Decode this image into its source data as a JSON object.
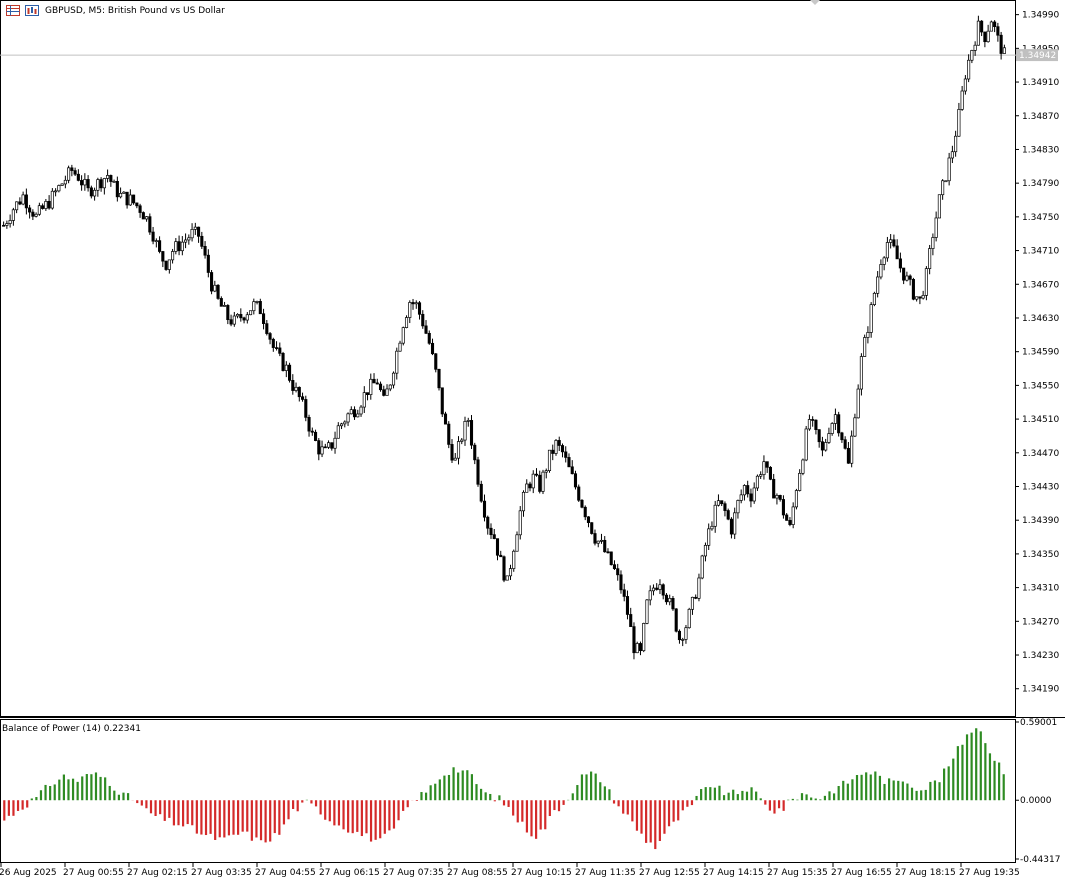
{
  "window": {
    "title": "GBPUSD, M5:  British Pound vs US Dollar"
  },
  "price_chart": {
    "type": "candlestick",
    "symbol": "GBPUSD",
    "timeframe": "M5",
    "y_ticks": [
      "1.34990",
      "1.34950",
      "1.34910",
      "1.34870",
      "1.34830",
      "1.34790",
      "1.34750",
      "1.34710",
      "1.34670",
      "1.34630",
      "1.34590",
      "1.34550",
      "1.34510",
      "1.34470",
      "1.34430",
      "1.34390",
      "1.34350",
      "1.34310",
      "1.34270",
      "1.34230",
      "1.34190"
    ],
    "y_range": [
      1.3416,
      1.35005
    ],
    "current_price": "1.34942",
    "colors": {
      "candle_up": "#000000",
      "candle_down": "#000000",
      "bid_line": "#c0c0c0",
      "price_label_bg": "#c0c0c0"
    },
    "close_path": [
      [
        0,
        1.3474
      ],
      [
        3,
        1.3476
      ],
      [
        6,
        1.34775
      ],
      [
        10,
        1.3475
      ],
      [
        14,
        1.34768
      ],
      [
        18,
        1.3479
      ],
      [
        21,
        1.34805
      ],
      [
        23,
        1.34798
      ],
      [
        26,
        1.3478
      ],
      [
        29,
        1.3479
      ],
      [
        32,
        1.348
      ],
      [
        34,
        1.34785
      ],
      [
        36,
        1.34775
      ],
      [
        39,
        1.3477
      ],
      [
        42,
        1.3476
      ],
      [
        44,
        1.34748
      ],
      [
        46,
        1.3473
      ],
      [
        48,
        1.34705
      ],
      [
        50,
        1.34695
      ],
      [
        52,
        1.3471
      ],
      [
        55,
        1.3472
      ],
      [
        58,
        1.3473
      ],
      [
        60,
        1.34728
      ],
      [
        62,
        1.347
      ],
      [
        64,
        1.3467
      ],
      [
        66,
        1.3465
      ],
      [
        69,
        1.3463
      ],
      [
        71,
        1.34625
      ],
      [
        74,
        1.34635
      ],
      [
        77,
        1.34645
      ],
      [
        79,
        1.3464
      ],
      [
        81,
        1.3462
      ],
      [
        83,
        1.34595
      ],
      [
        85,
        1.3458
      ],
      [
        87,
        1.3457
      ],
      [
        89,
        1.3455
      ],
      [
        91,
        1.34535
      ],
      [
        93,
        1.34515
      ],
      [
        95,
        1.3449
      ],
      [
        97,
        1.34475
      ],
      [
        99,
        1.3447
      ],
      [
        101,
        1.3448
      ],
      [
        103,
        1.345
      ],
      [
        106,
        1.34515
      ],
      [
        109,
        1.34525
      ],
      [
        112,
        1.34545
      ],
      [
        115,
        1.34555
      ],
      [
        117,
        1.3453
      ],
      [
        119,
        1.34555
      ],
      [
        121,
        1.3459
      ],
      [
        123,
        1.34625
      ],
      [
        125,
        1.3465
      ],
      [
        127,
        1.34645
      ],
      [
        129,
        1.34625
      ],
      [
        131,
        1.346
      ],
      [
        133,
        1.34565
      ],
      [
        135,
        1.3452
      ],
      [
        137,
        1.3448
      ],
      [
        139,
        1.3446
      ],
      [
        141,
        1.3449
      ],
      [
        143,
        1.3451
      ],
      [
        145,
        1.3446
      ],
      [
        147,
        1.3442
      ],
      [
        149,
        1.34385
      ],
      [
        151,
        1.3437
      ],
      [
        153,
        1.3434
      ],
      [
        155,
        1.34315
      ],
      [
        157,
        1.3436
      ],
      [
        159,
        1.344
      ],
      [
        161,
        1.3443
      ],
      [
        163,
        1.3444
      ],
      [
        165,
        1.3443
      ],
      [
        168,
        1.34465
      ],
      [
        170,
        1.3448
      ],
      [
        172,
        1.3447
      ],
      [
        174,
        1.3445
      ],
      [
        176,
        1.3443
      ],
      [
        178,
        1.3441
      ],
      [
        180,
        1.3439
      ],
      [
        182,
        1.3437
      ],
      [
        184,
        1.3436
      ],
      [
        186,
        1.34345
      ],
      [
        188,
        1.3433
      ],
      [
        190,
        1.3431
      ],
      [
        192,
        1.3428
      ],
      [
        194,
        1.3424
      ],
      [
        196,
        1.3423
      ],
      [
        198,
        1.3429
      ],
      [
        200,
        1.3431
      ],
      [
        202,
        1.3432
      ],
      [
        204,
        1.343
      ],
      [
        206,
        1.3428
      ],
      [
        208,
        1.3425
      ],
      [
        210,
        1.34265
      ],
      [
        212,
        1.3429
      ],
      [
        214,
        1.3432
      ],
      [
        216,
        1.3436
      ],
      [
        218,
        1.3439
      ],
      [
        220,
        1.3441
      ],
      [
        222,
        1.344
      ],
      [
        224,
        1.3438
      ],
      [
        226,
        1.3441
      ],
      [
        228,
        1.3443
      ],
      [
        230,
        1.3442
      ],
      [
        232,
        1.3444
      ],
      [
        234,
        1.3446
      ],
      [
        236,
        1.3443
      ],
      [
        238,
        1.3442
      ],
      [
        240,
        1.344
      ],
      [
        242,
        1.3438
      ],
      [
        244,
        1.3443
      ],
      [
        246,
        1.3447
      ],
      [
        248,
        1.3451
      ],
      [
        250,
        1.3449
      ],
      [
        252,
        1.3447
      ],
      [
        254,
        1.345
      ],
      [
        256,
        1.34515
      ],
      [
        258,
        1.3449
      ],
      [
        260,
        1.34455
      ],
      [
        262,
        1.3452
      ],
      [
        264,
        1.3458
      ],
      [
        266,
        1.3462
      ],
      [
        268,
        1.3466
      ],
      [
        270,
        1.347
      ],
      [
        272,
        1.3472
      ],
      [
        274,
        1.3471
      ],
      [
        276,
        1.3469
      ],
      [
        278,
        1.34675
      ],
      [
        280,
        1.3466
      ],
      [
        282,
        1.3465
      ],
      [
        284,
        1.3468
      ],
      [
        286,
        1.3473
      ],
      [
        288,
        1.3477
      ],
      [
        290,
        1.348
      ],
      [
        292,
        1.3483
      ],
      [
        294,
        1.3487
      ],
      [
        296,
        1.3492
      ],
      [
        298,
        1.3495
      ],
      [
        300,
        1.34975
      ],
      [
        302,
        1.34965
      ],
      [
        304,
        1.34985
      ],
      [
        306,
        1.3496
      ],
      [
        308,
        1.34942
      ]
    ]
  },
  "indicator": {
    "title": "Balance of Power (14) 0.22341",
    "y_ticks": [
      "0.59001",
      "0.0000",
      "-0.44317"
    ],
    "y_range": [
      -0.44317,
      0.59001
    ],
    "colors": {
      "positive": "#2e8b22",
      "negative": "#d42a2a"
    },
    "bop_path": [
      [
        0,
        -0.15
      ],
      [
        4,
        -0.05
      ],
      [
        7,
        0.02
      ],
      [
        10,
        0.12
      ],
      [
        13,
        0.18
      ],
      [
        16,
        0.15
      ],
      [
        19,
        0.2
      ],
      [
        22,
        0.17
      ],
      [
        24,
        0.1
      ],
      [
        26,
        0.04
      ],
      [
        28,
        0.01
      ],
      [
        29,
        -0.02
      ],
      [
        31,
        -0.08
      ],
      [
        33,
        -0.12
      ],
      [
        36,
        -0.16
      ],
      [
        40,
        -0.2
      ],
      [
        44,
        -0.27
      ],
      [
        48,
        -0.3
      ],
      [
        52,
        -0.24
      ],
      [
        56,
        -0.32
      ],
      [
        60,
        -0.25
      ],
      [
        63,
        -0.08
      ],
      [
        66,
        -0.02
      ],
      [
        68,
        -0.06
      ],
      [
        71,
        -0.15
      ],
      [
        74,
        -0.2
      ],
      [
        78,
        -0.26
      ],
      [
        82,
        -0.31
      ],
      [
        85,
        -0.22
      ],
      [
        88,
        -0.05
      ],
      [
        90,
        0.02
      ],
      [
        92,
        0.06
      ],
      [
        94,
        0.14
      ],
      [
        96,
        0.2
      ],
      [
        98,
        0.24
      ],
      [
        100,
        0.22
      ],
      [
        102,
        0.18
      ],
      [
        104,
        0.08
      ],
      [
        106,
        0.03
      ],
      [
        108,
        0.01
      ],
      [
        110,
        -0.06
      ],
      [
        112,
        -0.15
      ],
      [
        114,
        -0.22
      ],
      [
        116,
        -0.27
      ],
      [
        118,
        -0.2
      ],
      [
        120,
        -0.08
      ],
      [
        122,
        -0.03
      ],
      [
        124,
        0.08
      ],
      [
        126,
        0.18
      ],
      [
        128,
        0.2
      ],
      [
        130,
        0.16
      ],
      [
        132,
        0.06
      ],
      [
        134,
        -0.05
      ],
      [
        136,
        -0.12
      ],
      [
        138,
        -0.22
      ],
      [
        140,
        -0.3
      ],
      [
        142,
        -0.35
      ],
      [
        144,
        -0.25
      ],
      [
        146,
        -0.18
      ],
      [
        148,
        -0.1
      ],
      [
        150,
        -0.04
      ],
      [
        152,
        0.06
      ],
      [
        154,
        0.12
      ],
      [
        156,
        0.08
      ],
      [
        158,
        0.04
      ],
      [
        160,
        0.06
      ],
      [
        162,
        0.09
      ],
      [
        164,
        0.05
      ],
      [
        166,
        -0.04
      ],
      [
        168,
        -0.08
      ],
      [
        170,
        -0.06
      ],
      [
        172,
        0.01
      ],
      [
        174,
        0.05
      ],
      [
        176,
        0.03
      ],
      [
        178,
        0.02
      ],
      [
        180,
        0.06
      ],
      [
        182,
        0.1
      ],
      [
        184,
        0.14
      ],
      [
        186,
        0.18
      ],
      [
        188,
        0.22
      ],
      [
        190,
        0.2
      ],
      [
        192,
        0.15
      ],
      [
        194,
        0.13
      ],
      [
        196,
        0.16
      ],
      [
        198,
        0.12
      ],
      [
        200,
        0.08
      ],
      [
        202,
        0.12
      ],
      [
        204,
        0.16
      ],
      [
        206,
        0.26
      ],
      [
        208,
        0.38
      ],
      [
        210,
        0.5
      ],
      [
        212,
        0.56
      ],
      [
        214,
        0.46
      ],
      [
        216,
        0.3
      ],
      [
        218,
        0.22
      ]
    ]
  },
  "time_axis": {
    "labels": [
      "26 Aug 2025",
      "27 Aug 00:55",
      "27 Aug 02:15",
      "27 Aug 03:35",
      "27 Aug 04:55",
      "27 Aug 06:15",
      "27 Aug 07:35",
      "27 Aug 08:55",
      "27 Aug 10:15",
      "27 Aug 11:35",
      "27 Aug 12:55",
      "27 Aug 14:15",
      "27 Aug 15:35",
      "27 Aug 16:55",
      "27 Aug 18:15",
      "27 Aug 19:35"
    ]
  }
}
